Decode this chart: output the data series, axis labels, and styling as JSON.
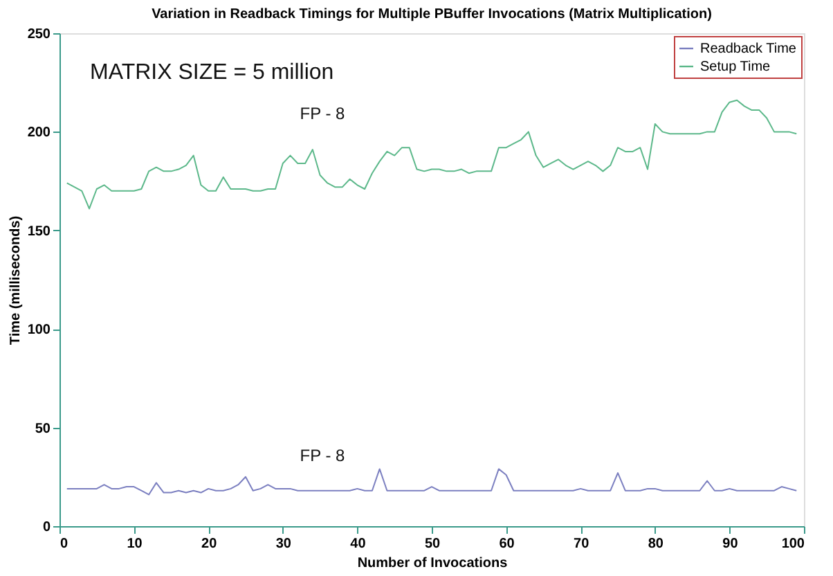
{
  "chart_data": {
    "type": "line",
    "title": "Variation in Readback Timings for Multiple PBuffer Invocations (Matrix Multiplication)",
    "xlabel": "Number of Invocations",
    "ylabel": "Time (milliseconds)",
    "x": [
      1,
      2,
      3,
      4,
      5,
      6,
      7,
      8,
      9,
      10,
      11,
      12,
      13,
      14,
      15,
      16,
      17,
      18,
      19,
      20,
      21,
      22,
      23,
      24,
      25,
      26,
      27,
      28,
      29,
      30,
      31,
      32,
      33,
      34,
      35,
      36,
      37,
      38,
      39,
      40,
      41,
      42,
      43,
      44,
      45,
      46,
      47,
      48,
      49,
      50,
      51,
      52,
      53,
      54,
      55,
      56,
      57,
      58,
      59,
      60,
      61,
      62,
      63,
      64,
      65,
      66,
      67,
      68,
      69,
      70,
      71,
      72,
      73,
      74,
      75,
      76,
      77,
      78,
      79,
      80,
      81,
      82,
      83,
      84,
      85,
      86,
      87,
      88,
      89,
      90,
      91,
      92,
      93,
      94,
      95,
      96,
      97,
      98,
      99
    ],
    "series": [
      {
        "name": "Readback Time",
        "color": "#7b7fc0",
        "values": [
          19,
          19,
          19,
          19,
          19,
          21,
          19,
          19,
          20,
          20,
          18,
          16,
          22,
          17,
          17,
          18,
          17,
          18,
          17,
          19,
          18,
          18,
          19,
          21,
          25,
          18,
          19,
          21,
          19,
          19,
          19,
          18,
          18,
          18,
          18,
          18,
          18,
          18,
          18,
          19,
          18,
          18,
          29,
          18,
          18,
          18,
          18,
          18,
          18,
          20,
          18,
          18,
          18,
          18,
          18,
          18,
          18,
          18,
          29,
          26,
          18,
          18,
          18,
          18,
          18,
          18,
          18,
          18,
          18,
          19,
          18,
          18,
          18,
          18,
          27,
          18,
          18,
          18,
          19,
          19,
          18,
          18,
          18,
          18,
          18,
          18,
          23,
          18,
          18,
          19,
          18,
          18,
          18,
          18,
          18,
          18,
          20,
          19,
          18
        ]
      },
      {
        "name": "Setup Time",
        "color": "#5cb88a",
        "values": [
          174,
          172,
          170,
          161,
          171,
          173,
          170,
          170,
          170,
          170,
          171,
          180,
          182,
          180,
          180,
          181,
          183,
          188,
          173,
          170,
          170,
          177,
          171,
          171,
          171,
          170,
          170,
          171,
          171,
          184,
          188,
          184,
          184,
          191,
          178,
          174,
          172,
          172,
          176,
          173,
          171,
          179,
          185,
          190,
          188,
          192,
          192,
          181,
          180,
          181,
          181,
          180,
          180,
          181,
          179,
          180,
          180,
          180,
          192,
          192,
          194,
          196,
          200,
          188,
          182,
          184,
          186,
          183,
          181,
          183,
          185,
          183,
          180,
          183,
          192,
          190,
          190,
          192,
          181,
          204,
          200,
          199,
          199,
          199,
          199,
          199,
          200,
          200,
          210,
          215,
          216,
          213,
          211,
          211,
          207,
          200,
          200,
          200,
          199
        ]
      }
    ],
    "xlim": [
      0,
      100
    ],
    "xticks": [
      0,
      10,
      20,
      30,
      40,
      50,
      60,
      70,
      80,
      90,
      100
    ],
    "ylim": [
      0,
      250
    ],
    "yticks": [
      0,
      50,
      100,
      150,
      200,
      250
    ],
    "annotations": [
      "MATRIX SIZE = 5 million",
      "FP - 8",
      "FP - 8"
    ],
    "grid": false,
    "legend": "top right",
    "marker": "none",
    "line_style": "solid"
  }
}
